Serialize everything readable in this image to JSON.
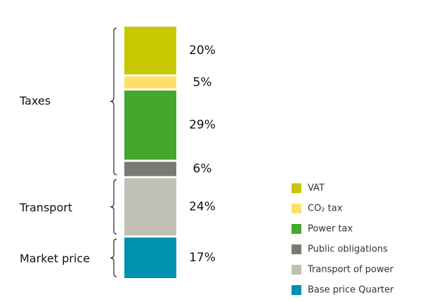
{
  "chart_data": {
    "type": "stacked-bar",
    "series": [
      {
        "name": "VAT",
        "color": "#c8c800",
        "values": [
          20
        ],
        "value_labels": [
          "20%"
        ]
      },
      {
        "name": "CO₂ tax",
        "color": "#ffe066",
        "values": [
          5
        ],
        "value_labels": [
          "5%"
        ]
      },
      {
        "name": "Power tax",
        "color": "#44a72e",
        "values": [
          29
        ],
        "value_labels": [
          "29%"
        ]
      },
      {
        "name": "Public obligations",
        "color": "#7a7a72",
        "values": [
          6
        ],
        "value_labels": [
          "6%"
        ]
      },
      {
        "name": "Transport of power",
        "color": "#c0c0b4",
        "values": [
          24
        ],
        "value_labels": [
          "24%"
        ]
      },
      {
        "name": "Base price Quarter",
        "color": "#0090b0",
        "values": [
          17
        ],
        "value_labels": [
          "17%"
        ]
      }
    ],
    "groups": [
      {
        "label": "Taxes"
      },
      {
        "label": "Transport"
      },
      {
        "label": "Market price"
      }
    ]
  }
}
